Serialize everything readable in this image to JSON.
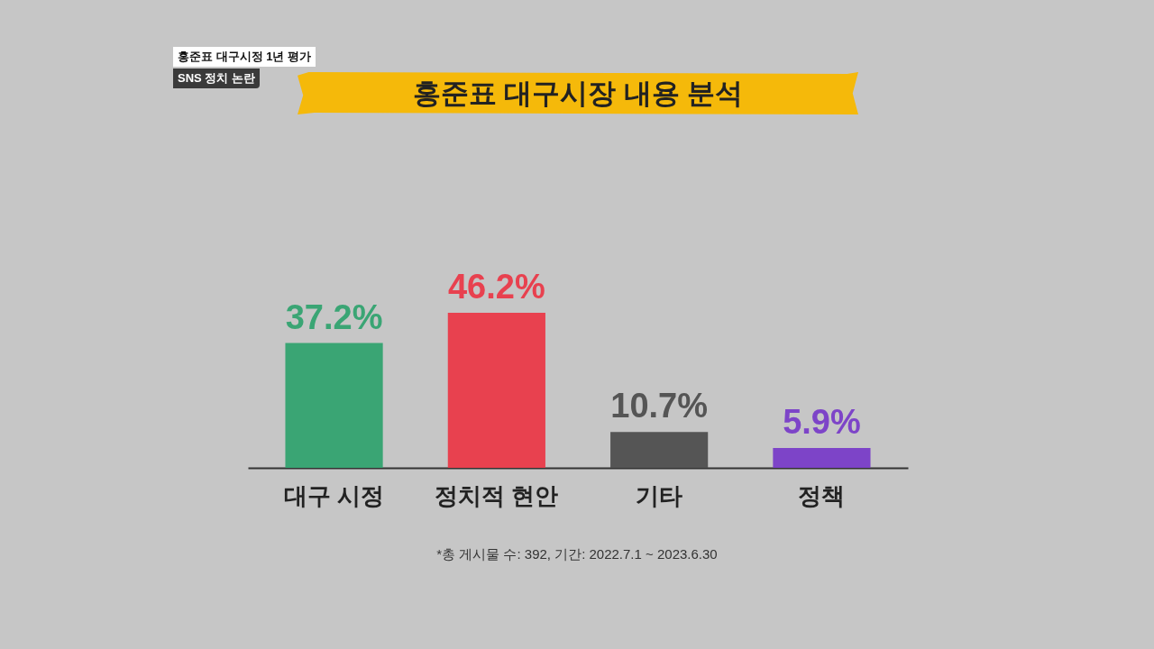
{
  "chart_data": {
    "type": "bar",
    "title": "홍준표 대구시장 내용 분석",
    "categories": [
      "대구 시정",
      "정치적 현안",
      "기타",
      "정책"
    ],
    "values": [
      37.2,
      46.2,
      10.7,
      5.9
    ],
    "colors": [
      "#3aa574",
      "#e8414f",
      "#555555",
      "#7d44c8"
    ],
    "value_labels": [
      "37.2%",
      "46.2%",
      "10.7%",
      "5.9%"
    ],
    "annotations": [
      "홍준표 대구시정 1년 평가",
      "SNS 정치 논란",
      "*총 게시물 수: 392, 기간: 2022.7.1 ~ 2023.6.30"
    ]
  }
}
